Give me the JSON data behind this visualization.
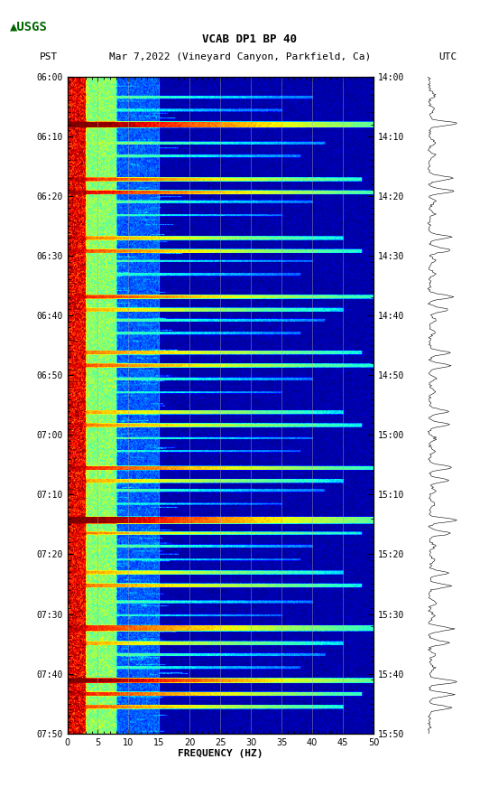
{
  "title_line1": "VCAB DP1 BP 40",
  "title_line2": "PST   Mar 7,2022 (Vineyard Canyon, Parkfield, Ca)        UTC",
  "xlabel": "FREQUENCY (HZ)",
  "pst_ticks": [
    "06:00",
    "06:10",
    "06:20",
    "06:30",
    "06:40",
    "06:50",
    "07:00",
    "07:10",
    "07:20",
    "07:30",
    "07:40",
    "07:50"
  ],
  "utc_ticks": [
    "14:00",
    "14:10",
    "14:20",
    "14:30",
    "14:40",
    "14:50",
    "15:00",
    "15:10",
    "15:20",
    "15:30",
    "15:40",
    "15:50"
  ],
  "grid_freqs": [
    5,
    10,
    15,
    20,
    25,
    30,
    35,
    40,
    45
  ],
  "freq_ticks": [
    0,
    5,
    10,
    15,
    20,
    25,
    30,
    35,
    40,
    45,
    50
  ],
  "freq_min": 0,
  "freq_max": 50,
  "background_color": "#ffffff",
  "spectrogram_cmap": "jet",
  "fig_width": 5.52,
  "fig_height": 8.92
}
